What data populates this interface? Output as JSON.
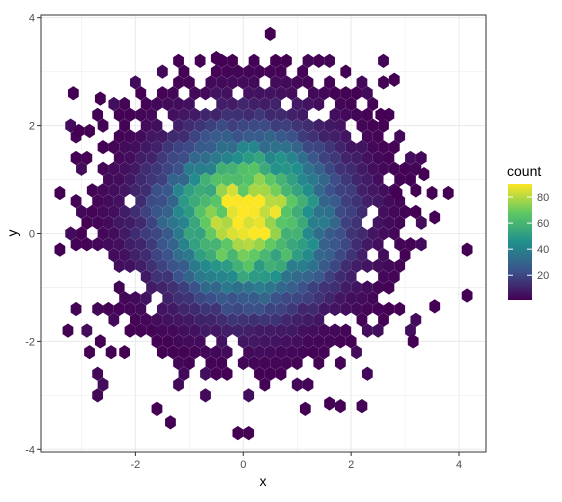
{
  "chart_data": {
    "type": "hexbin",
    "xlabel": "x",
    "ylabel": "y",
    "xlim": [
      -3.75,
      4.5
    ],
    "ylim": [
      -4.05,
      4.05
    ],
    "x_ticks": [
      -2,
      0,
      2,
      4
    ],
    "x_tick_labels": [
      "-2",
      "0",
      "2",
      "4"
    ],
    "y_ticks": [
      -4,
      -2,
      0,
      2,
      4
    ],
    "y_tick_labels": [
      "-4",
      "-2",
      "0",
      "2",
      "4"
    ],
    "grid": true,
    "legend": {
      "title": "count",
      "position": "right",
      "range": [
        1,
        90
      ],
      "ticks": [
        20,
        40,
        60,
        80
      ],
      "tick_labels": [
        "20",
        "40",
        "60",
        "80"
      ],
      "palette": [
        "#440154",
        "#3b528b",
        "#21908c",
        "#5dc863",
        "#fde725"
      ]
    },
    "hex_grid": {
      "dx": 0.2,
      "dy": 0.2,
      "x0": 0,
      "y0": 0
    },
    "bin_counts": {
      "description_free": true
    },
    "distribution": {
      "center": [
        0.1,
        0.3
      ],
      "peak_count": 88,
      "spread_x": 1.05,
      "spread_y": 1.0
    },
    "outlier_bins": [
      [
        0.5,
        3.7
      ],
      [
        -0.5,
        3.25
      ],
      [
        -3.15,
        2.6
      ],
      [
        -2.65,
        2.5
      ],
      [
        2.8,
        2.85
      ],
      [
        4.15,
        -0.3
      ],
      [
        4.15,
        -1.15
      ],
      [
        3.55,
        -1.35
      ],
      [
        3.15,
        -2.0
      ],
      [
        -3.25,
        -1.8
      ],
      [
        3.8,
        0.75
      ],
      [
        3.5,
        0.75
      ],
      [
        3.55,
        0.3
      ],
      [
        -0.1,
        -3.7
      ],
      [
        0.1,
        -3.7
      ],
      [
        1.15,
        -3.25
      ],
      [
        1.6,
        -3.15
      ],
      [
        -1.6,
        -3.25
      ],
      [
        -1.35,
        -3.5
      ],
      [
        -2.85,
        -2.2
      ],
      [
        -2.2,
        -2.2
      ],
      [
        -2.45,
        -2.2
      ],
      [
        -2.65,
        -2.0
      ],
      [
        -3.4,
        -0.3
      ],
      [
        -3.4,
        0.75
      ],
      [
        3.35,
        1.1
      ],
      [
        2.85,
        0.75
      ],
      [
        -2.85,
        1.9
      ],
      [
        -3.05,
        1.9
      ],
      [
        2.55,
        2.2
      ]
    ]
  }
}
